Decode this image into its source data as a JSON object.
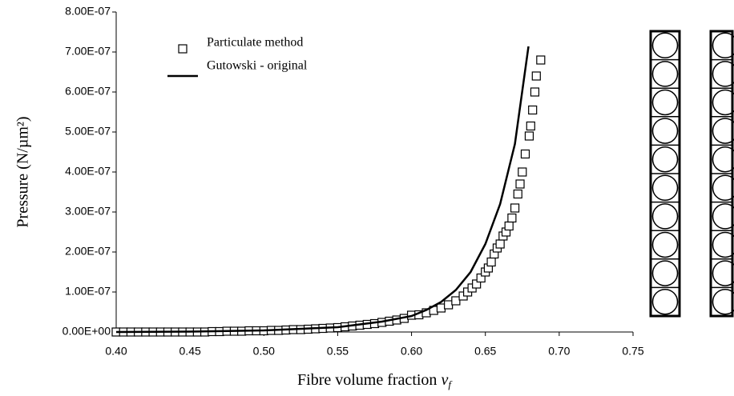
{
  "chart_data": {
    "type": "scatter",
    "xlabel": "Fibre volume fraction",
    "xlabel_symbol": {
      "base": "v",
      "sub": "f"
    },
    "ylabel": "Pressure (N/µm²)",
    "xlim": [
      0.4,
      0.75
    ],
    "ylim": [
      0,
      8e-07
    ],
    "xticks": [
      {
        "value": 0.4,
        "label": "0.40"
      },
      {
        "value": 0.45,
        "label": "0.45"
      },
      {
        "value": 0.5,
        "label": "0.50"
      },
      {
        "value": 0.55,
        "label": "0.55"
      },
      {
        "value": 0.6,
        "label": "0.60"
      },
      {
        "value": 0.65,
        "label": "0.65"
      },
      {
        "value": 0.7,
        "label": "0.70"
      },
      {
        "value": 0.75,
        "label": "0.75"
      }
    ],
    "yticks": [
      {
        "value": 0,
        "label": "0.00E+00"
      },
      {
        "value": 1e-07,
        "label": "1.00E-07"
      },
      {
        "value": 2e-07,
        "label": "2.00E-07"
      },
      {
        "value": 3e-07,
        "label": "3.00E-07"
      },
      {
        "value": 4e-07,
        "label": "4.00E-07"
      },
      {
        "value": 5e-07,
        "label": "5.00E-07"
      },
      {
        "value": 6e-07,
        "label": "6.00E-07"
      },
      {
        "value": 7e-07,
        "label": "7.00E-07"
      },
      {
        "value": 8e-07,
        "label": "8.00E-07"
      }
    ],
    "legend": "upper left",
    "series": [
      {
        "name": "Particulate method",
        "type": "scatter",
        "color": "#000000",
        "x": [
          0.4,
          0.405,
          0.41,
          0.415,
          0.42,
          0.425,
          0.43,
          0.435,
          0.44,
          0.445,
          0.45,
          0.455,
          0.46,
          0.465,
          0.47,
          0.475,
          0.48,
          0.485,
          0.49,
          0.495,
          0.5,
          0.505,
          0.51,
          0.515,
          0.52,
          0.525,
          0.53,
          0.535,
          0.54,
          0.545,
          0.55,
          0.555,
          0.56,
          0.565,
          0.57,
          0.575,
          0.58,
          0.585,
          0.59,
          0.595,
          0.6,
          0.605,
          0.61,
          0.615,
          0.62,
          0.625,
          0.63,
          0.635,
          0.638,
          0.641,
          0.644,
          0.647,
          0.65,
          0.652,
          0.654,
          0.656,
          0.658,
          0.66,
          0.662,
          0.664,
          0.666,
          0.668,
          0.67,
          0.672,
          0.6735,
          0.675,
          0.677,
          0.6797,
          0.6807,
          0.682,
          0.6835,
          0.6845,
          0.6875
        ],
        "values": [
          0,
          0,
          0,
          0,
          0,
          0,
          0,
          0,
          0,
          0,
          0,
          0,
          0,
          1e-09,
          1e-09,
          2e-09,
          2e-09,
          2e-09,
          3e-09,
          3e-09,
          3e-09,
          4e-09,
          4e-09,
          5e-09,
          6e-09,
          6e-09,
          7e-09,
          8e-09,
          9e-09,
          1e-08,
          1.1e-08,
          1.3e-08,
          1.5e-08,
          1.7e-08,
          1.9e-08,
          2.1e-08,
          2.4e-08,
          2.7e-08,
          3e-08,
          3.4e-08,
          4.2e-08,
          4.3e-08,
          4.8e-08,
          5.4e-08,
          6e-08,
          6.8e-08,
          7.8e-08,
          9e-08,
          1e-07,
          1.1e-07,
          1.2e-07,
          1.35e-07,
          1.5e-07,
          1.6e-07,
          1.75e-07,
          1.95e-07,
          2.1e-07,
          2.2e-07,
          2.4e-07,
          2.5e-07,
          2.65e-07,
          2.85e-07,
          3.1e-07,
          3.45e-07,
          3.7e-07,
          4e-07,
          4.45e-07,
          4.9e-07,
          5.15e-07,
          5.55e-07,
          6e-07,
          6.4e-07,
          6.8e-07
        ]
      },
      {
        "name": "Gutowski - original",
        "type": "line",
        "color": "#000000",
        "x": [
          0.4,
          0.45,
          0.5,
          0.55,
          0.58,
          0.6,
          0.61,
          0.62,
          0.63,
          0.64,
          0.65,
          0.66,
          0.67,
          0.6792
        ],
        "values": [
          0,
          1e-09,
          4e-09,
          1.2e-08,
          2.6e-08,
          4e-08,
          5.5e-08,
          7.5e-08,
          1.05e-07,
          1.5e-07,
          2.2e-07,
          3.2e-07,
          4.7e-07,
          7.14e-07
        ]
      }
    ]
  }
}
